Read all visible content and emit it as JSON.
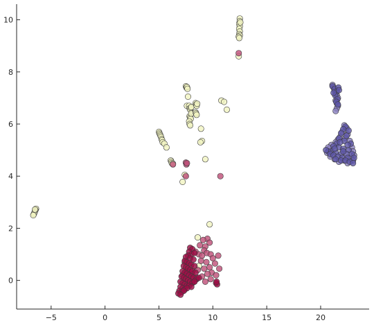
{
  "chart_data": {
    "type": "scatter",
    "title": "",
    "xlabel": "",
    "ylabel": "",
    "xlim": [
      -8.2,
      24.5
    ],
    "ylim": [
      -1.1,
      10.6
    ],
    "xticks": [
      -5,
      0,
      5,
      10,
      15,
      20
    ],
    "yticks": [
      0,
      2,
      4,
      6,
      8,
      10
    ],
    "grid": false,
    "legend": "none",
    "colors": {
      "pale": "#f2f4c2",
      "crimson": "#9e0d45",
      "pink": "#c0527a",
      "purple": "#5d55a6",
      "lavender": "#8a80bf",
      "edge": "#3a3a3a"
    },
    "series": [
      {
        "color": "pale",
        "points": [
          [
            -6.4,
            2.75
          ],
          [
            -6.45,
            2.7
          ],
          [
            -6.5,
            2.65
          ],
          [
            -6.55,
            2.6
          ],
          [
            -6.6,
            2.55
          ],
          [
            -6.65,
            2.5
          ],
          [
            -6.5,
            2.72
          ],
          [
            5.0,
            5.7
          ],
          [
            5.05,
            5.65
          ],
          [
            5.1,
            5.6
          ],
          [
            5.15,
            5.55
          ],
          [
            5.2,
            5.5
          ],
          [
            5.25,
            5.42
          ],
          [
            5.3,
            5.38
          ],
          [
            5.35,
            5.3
          ],
          [
            5.5,
            5.25
          ],
          [
            5.7,
            5.1
          ],
          [
            6.1,
            4.6
          ],
          [
            6.15,
            4.55
          ],
          [
            6.2,
            4.5
          ],
          [
            6.3,
            4.48
          ],
          [
            7.2,
            3.78
          ],
          [
            7.4,
            4.05
          ],
          [
            7.5,
            7.45
          ],
          [
            7.55,
            7.4
          ],
          [
            7.6,
            7.42
          ],
          [
            7.65,
            7.35
          ],
          [
            7.7,
            7.05
          ],
          [
            7.6,
            6.7
          ],
          [
            7.8,
            6.7
          ],
          [
            7.85,
            6.6
          ],
          [
            7.9,
            6.55
          ],
          [
            7.95,
            6.62
          ],
          [
            8.0,
            6.65
          ],
          [
            7.85,
            6.3
          ],
          [
            7.9,
            6.25
          ],
          [
            7.95,
            6.2
          ],
          [
            7.8,
            6.1
          ],
          [
            7.85,
            6.0
          ],
          [
            7.9,
            5.95
          ],
          [
            8.0,
            6.4
          ],
          [
            8.4,
            6.8
          ],
          [
            8.45,
            6.75
          ],
          [
            8.5,
            6.7
          ],
          [
            8.55,
            6.78
          ],
          [
            8.4,
            6.45
          ],
          [
            8.45,
            6.4
          ],
          [
            8.5,
            6.35
          ],
          [
            8.9,
            5.82
          ],
          [
            9.0,
            5.35
          ],
          [
            8.85,
            5.3
          ],
          [
            9.3,
            4.65
          ],
          [
            10.8,
            6.9
          ],
          [
            11.05,
            6.85
          ],
          [
            11.3,
            6.55
          ],
          [
            12.5,
            10.05
          ],
          [
            12.5,
            9.95
          ],
          [
            12.45,
            9.85
          ],
          [
            12.5,
            9.75
          ],
          [
            12.45,
            9.65
          ],
          [
            12.5,
            9.55
          ],
          [
            12.45,
            9.45
          ],
          [
            12.5,
            9.4
          ],
          [
            12.4,
            9.35
          ],
          [
            12.45,
            9.3
          ],
          [
            12.55,
            9.9
          ],
          [
            12.4,
            8.6
          ],
          [
            9.7,
            2.15
          ],
          [
            8.6,
            1.65
          ],
          [
            8.7,
            0.55
          ],
          [
            8.0,
            0.45
          ],
          [
            7.7,
            0.05
          ],
          [
            7.9,
            -0.05
          ]
        ]
      },
      {
        "color": "pink",
        "points": [
          [
            6.3,
            4.45
          ],
          [
            7.5,
            4.52
          ],
          [
            7.55,
            4.45
          ],
          [
            7.6,
            4.5
          ],
          [
            10.7,
            4.0
          ],
          [
            12.4,
            8.72
          ],
          [
            7.5,
            4.0
          ],
          [
            9.5,
            1.6
          ],
          [
            9.7,
            1.45
          ],
          [
            9.1,
            1.55
          ],
          [
            8.8,
            1.35
          ],
          [
            9.3,
            1.3
          ],
          [
            9.2,
            1.15
          ],
          [
            9.45,
            1.05
          ],
          [
            9.8,
            1.0
          ],
          [
            8.4,
            1.1
          ],
          [
            8.7,
            1.0
          ],
          [
            9.0,
            0.95
          ],
          [
            8.9,
            0.75
          ],
          [
            9.4,
            0.7
          ],
          [
            10.0,
            0.85
          ],
          [
            10.5,
            0.95
          ],
          [
            10.2,
            0.65
          ],
          [
            9.7,
            0.5
          ],
          [
            9.2,
            0.45
          ],
          [
            8.6,
            0.4
          ],
          [
            10.6,
            0.45
          ],
          [
            9.9,
            0.3
          ],
          [
            9.5,
            0.25
          ],
          [
            9.0,
            0.15
          ],
          [
            9.3,
            -0.05
          ],
          [
            9.8,
            0.05
          ],
          [
            10.3,
            0.2
          ],
          [
            7.4,
            0.7
          ],
          [
            7.6,
            0.35
          ],
          [
            8.1,
            0.25
          ],
          [
            8.3,
            -0.05
          ],
          [
            8.5,
            0.1
          ],
          [
            7.2,
            0.2
          ]
        ]
      },
      {
        "color": "crimson",
        "points": [
          [
            7.9,
            1.25
          ],
          [
            8.1,
            1.2
          ],
          [
            7.8,
            1.1
          ],
          [
            8.0,
            1.0
          ],
          [
            8.3,
            1.05
          ],
          [
            7.7,
            0.95
          ],
          [
            7.5,
            0.9
          ],
          [
            7.9,
            0.85
          ],
          [
            8.2,
            0.8
          ],
          [
            7.4,
            0.75
          ],
          [
            7.6,
            0.7
          ],
          [
            7.8,
            0.65
          ],
          [
            8.0,
            0.6
          ],
          [
            8.3,
            0.55
          ],
          [
            7.3,
            0.55
          ],
          [
            7.5,
            0.5
          ],
          [
            7.7,
            0.45
          ],
          [
            7.9,
            0.4
          ],
          [
            8.1,
            0.35
          ],
          [
            8.4,
            0.3
          ],
          [
            7.2,
            0.35
          ],
          [
            7.4,
            0.3
          ],
          [
            7.6,
            0.25
          ],
          [
            7.8,
            0.2
          ],
          [
            8.0,
            0.15
          ],
          [
            8.2,
            0.1
          ],
          [
            8.5,
            0.05
          ],
          [
            8.7,
            0.1
          ],
          [
            7.1,
            0.15
          ],
          [
            7.3,
            0.1
          ],
          [
            7.5,
            0.05
          ],
          [
            7.7,
            0.0
          ],
          [
            7.9,
            -0.05
          ],
          [
            8.1,
            -0.1
          ],
          [
            8.3,
            -0.05
          ],
          [
            7.0,
            -0.05
          ],
          [
            7.2,
            -0.1
          ],
          [
            7.4,
            -0.15
          ],
          [
            7.6,
            -0.2
          ],
          [
            7.8,
            -0.2
          ],
          [
            8.0,
            -0.25
          ],
          [
            7.0,
            -0.25
          ],
          [
            7.2,
            -0.3
          ],
          [
            7.4,
            -0.35
          ],
          [
            7.6,
            -0.3
          ],
          [
            6.9,
            -0.4
          ],
          [
            7.1,
            -0.45
          ],
          [
            7.3,
            -0.4
          ],
          [
            6.8,
            -0.5
          ],
          [
            7.0,
            -0.55
          ],
          [
            10.3,
            -0.1
          ],
          [
            10.4,
            -0.15
          ],
          [
            10.35,
            -0.05
          ]
        ]
      },
      {
        "color": "lavender",
        "points": [
          [
            21.1,
            7.5
          ],
          [
            21.2,
            7.4
          ],
          [
            21.3,
            7.3
          ],
          [
            21.4,
            7.2
          ],
          [
            21.5,
            7.1
          ],
          [
            21.6,
            7.0
          ],
          [
            21.4,
            6.9
          ],
          [
            21.5,
            6.8
          ],
          [
            21.6,
            6.7
          ],
          [
            21.5,
            6.6
          ],
          [
            21.4,
            6.5
          ],
          [
            22.2,
            5.95
          ],
          [
            22.4,
            5.85
          ],
          [
            22.0,
            5.7
          ],
          [
            22.5,
            5.6
          ],
          [
            21.8,
            5.5
          ],
          [
            22.3,
            5.45
          ],
          [
            21.6,
            5.4
          ],
          [
            22.7,
            5.35
          ],
          [
            21.4,
            5.3
          ],
          [
            21.0,
            5.2
          ],
          [
            22.9,
            5.1
          ],
          [
            20.8,
            5.05
          ],
          [
            23.0,
            4.95
          ],
          [
            20.6,
            4.9
          ],
          [
            23.1,
            4.8
          ],
          [
            20.9,
            4.75
          ],
          [
            22.8,
            4.7
          ],
          [
            21.3,
            4.65
          ],
          [
            22.2,
            4.6
          ],
          [
            21.7,
            4.55
          ],
          [
            22.5,
            4.5
          ],
          [
            23.0,
            4.6
          ],
          [
            20.7,
            5.1
          ]
        ]
      },
      {
        "color": "purple",
        "points": [
          [
            21.1,
            7.45
          ],
          [
            21.3,
            7.35
          ],
          [
            21.5,
            7.25
          ],
          [
            21.35,
            7.1
          ],
          [
            21.55,
            6.95
          ],
          [
            21.45,
            6.85
          ],
          [
            21.65,
            7.4
          ],
          [
            21.2,
            7.2
          ],
          [
            21.6,
            6.75
          ],
          [
            21.7,
            7.3
          ],
          [
            22.3,
            5.9
          ],
          [
            22.1,
            5.8
          ],
          [
            22.6,
            5.75
          ],
          [
            21.9,
            5.65
          ],
          [
            22.4,
            5.55
          ],
          [
            21.7,
            5.45
          ],
          [
            22.2,
            5.35
          ],
          [
            22.8,
            5.25
          ],
          [
            21.5,
            5.25
          ],
          [
            21.2,
            5.15
          ],
          [
            21.7,
            5.1
          ],
          [
            22.1,
            5.05
          ],
          [
            22.6,
            5.0
          ],
          [
            21.0,
            4.95
          ],
          [
            21.4,
            4.9
          ],
          [
            21.9,
            4.85
          ],
          [
            22.4,
            4.85
          ],
          [
            22.9,
            4.85
          ],
          [
            20.7,
            4.95
          ],
          [
            20.9,
            4.85
          ],
          [
            21.2,
            4.8
          ],
          [
            21.6,
            4.75
          ],
          [
            22.0,
            4.7
          ],
          [
            22.5,
            4.7
          ],
          [
            23.1,
            4.7
          ],
          [
            21.4,
            4.65
          ],
          [
            21.9,
            4.6
          ],
          [
            22.3,
            4.6
          ],
          [
            22.7,
            4.55
          ],
          [
            23.0,
            4.5
          ],
          [
            22.1,
            4.95
          ],
          [
            21.8,
            5.3
          ],
          [
            22.5,
            5.2
          ],
          [
            21.3,
            5.05
          ],
          [
            20.5,
            5.0
          ]
        ]
      }
    ]
  }
}
